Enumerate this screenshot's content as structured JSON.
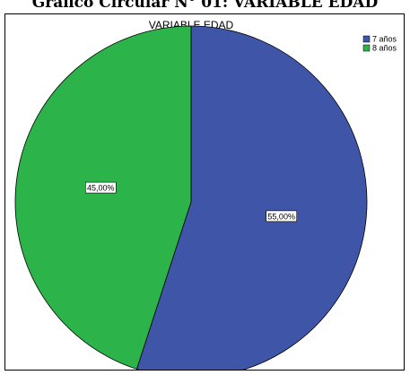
{
  "document_caption": "Gráfico Circular N° 01: VARIABLE EDAD",
  "chart_data": {
    "type": "pie",
    "title": "VARIABLE EDAD",
    "categories": [
      "7 años",
      "8 años"
    ],
    "values": [
      55.0,
      45.0
    ],
    "data_labels": [
      "55,00%",
      "45,00%"
    ],
    "colors": [
      "#3f56a8",
      "#2cb44a"
    ],
    "legend_placement": "top-right"
  }
}
